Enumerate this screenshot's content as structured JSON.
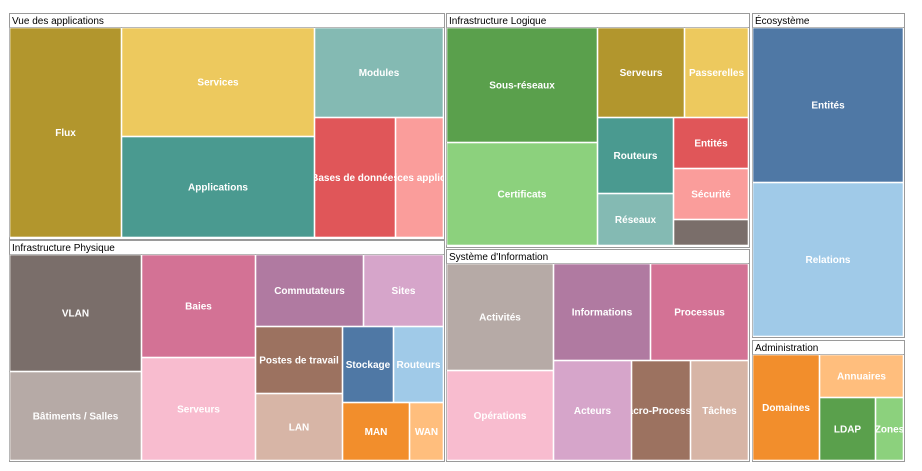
{
  "chart_data": {
    "type": "treemap",
    "groups": [
      {
        "name": "Vue des applications",
        "items": [
          {
            "label": "Flux",
            "color": "#b2962d"
          },
          {
            "label": "Services",
            "color": "#edc95e"
          },
          {
            "label": "Applications",
            "color": "#4a9a90"
          },
          {
            "label": "Modules",
            "color": "#84bab3"
          },
          {
            "label": "Bases de données",
            "color": "#e05659"
          },
          {
            "label": "Services applicatifs",
            "color": "#fa9d9b"
          }
        ]
      },
      {
        "name": "Infrastructure Logique",
        "items": [
          {
            "label": "Sous-réseaux",
            "color": "#5aa04c"
          },
          {
            "label": "Certificats",
            "color": "#8cd17d"
          },
          {
            "label": "Serveurs",
            "color": "#b2962d"
          },
          {
            "label": "Passerelles",
            "color": "#edc95e"
          },
          {
            "label": "Routeurs",
            "color": "#4a9a90"
          },
          {
            "label": "Entités",
            "color": "#e05659"
          },
          {
            "label": "Sécurité",
            "color": "#fa9d9b"
          },
          {
            "label": "Réseaux",
            "color": "#84bab3"
          },
          {
            "label": "",
            "color": "#7a6e6a"
          }
        ]
      },
      {
        "name": "Écosystème",
        "items": [
          {
            "label": "Entités",
            "color": "#4f78a5"
          },
          {
            "label": "Relations",
            "color": "#a0cae8"
          }
        ]
      },
      {
        "name": "Infrastructure Physique",
        "items": [
          {
            "label": "VLAN",
            "color": "#7a6e6a"
          },
          {
            "label": "Bâtiments / Salles",
            "color": "#b6aaa6"
          },
          {
            "label": "Baies",
            "color": "#d37295"
          },
          {
            "label": "Serveurs",
            "color": "#f8bccf"
          },
          {
            "label": "Commutateurs",
            "color": "#b07aa1"
          },
          {
            "label": "Sites",
            "color": "#d6a5ca"
          },
          {
            "label": "Postes de travail",
            "color": "#9c7260"
          },
          {
            "label": "Stockage",
            "color": "#4f78a5"
          },
          {
            "label": "Routeurs",
            "color": "#a0cae8"
          },
          {
            "label": "LAN",
            "color": "#d7b5a6"
          },
          {
            "label": "MAN",
            "color": "#f28e2c"
          },
          {
            "label": "WAN",
            "color": "#ffbe7d"
          }
        ]
      },
      {
        "name": "Système d'Information",
        "items": [
          {
            "label": "Activités",
            "color": "#b6aaa6"
          },
          {
            "label": "Opérations",
            "color": "#f8bccf"
          },
          {
            "label": "Informations",
            "color": "#b07aa1"
          },
          {
            "label": "Processus",
            "color": "#d37295"
          },
          {
            "label": "Acteurs",
            "color": "#d6a5ca"
          },
          {
            "label": "Macro-Processus",
            "color": "#9c7260"
          },
          {
            "label": "Tâches",
            "color": "#d7b5a6"
          }
        ]
      },
      {
        "name": "Administration",
        "items": [
          {
            "label": "Domaines",
            "color": "#f28e2c"
          },
          {
            "label": "Annuaires",
            "color": "#ffbe7d"
          },
          {
            "label": "LDAP",
            "color": "#5aa04c"
          },
          {
            "label": "Zones",
            "color": "#8cd17d"
          }
        ]
      }
    ]
  }
}
